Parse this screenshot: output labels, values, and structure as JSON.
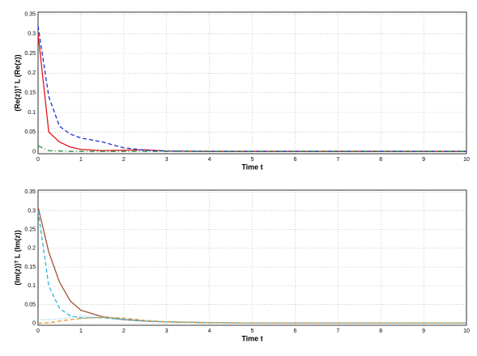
{
  "chart_data": [
    {
      "type": "line",
      "xlabel": "Time t",
      "ylabel": "(Re(z))ᵀ L (Re(z))",
      "x": [
        0,
        0.25,
        0.5,
        0.75,
        1,
        1.5,
        2,
        2.5,
        3,
        4,
        5,
        6,
        7,
        8,
        9,
        10
      ],
      "series": [
        {
          "color": "#e8141a",
          "dash": "solid",
          "values": [
            0.3,
            0.05,
            0.025,
            0.012,
            0.006,
            0.003,
            0.004,
            0.005,
            0.002,
            0.001,
            0.001,
            0.001,
            0.001,
            0.001,
            0.001,
            0.001
          ]
        },
        {
          "color": "#1a2fd6",
          "dash": "dashed",
          "values": [
            0.32,
            0.14,
            0.065,
            0.045,
            0.035,
            0.025,
            0.01,
            0.004,
            0.002,
            0.001,
            0.001,
            0.001,
            0.001,
            0.001,
            0.001,
            0.001
          ]
        },
        {
          "color": "#1d8a3a",
          "dash": "dashdot",
          "values": [
            0.015,
            0.003,
            0.002,
            0.001,
            0.001,
            0.001,
            0.001,
            0.001,
            0.001,
            0.001,
            0.001,
            0.001,
            0.001,
            0.001,
            0.001,
            0.001
          ]
        }
      ],
      "xlim": [
        0,
        10
      ],
      "xticks": [
        0,
        1,
        2,
        3,
        4,
        5,
        6,
        7,
        8,
        9,
        10
      ],
      "ylim": [
        -0.005,
        0.355
      ],
      "yticks": [
        0,
        0.05,
        0.1,
        0.15,
        0.2,
        0.25,
        0.3,
        0.35
      ],
      "grid": true
    },
    {
      "type": "line",
      "xlabel": "Time t",
      "ylabel": "(Im(z))ᵀ L (Im(z))",
      "x": [
        0,
        0.25,
        0.5,
        0.75,
        1,
        1.5,
        2,
        2.5,
        3,
        4,
        5,
        6,
        7,
        8,
        9,
        10
      ],
      "series": [
        {
          "color": "#a0522d",
          "dash": "solid",
          "values": [
            0.31,
            0.19,
            0.11,
            0.06,
            0.035,
            0.018,
            0.01,
            0.006,
            0.004,
            0.002,
            0.001,
            0.001,
            0.001,
            0.001,
            0.001,
            0.001
          ]
        },
        {
          "color": "#2bb5e0",
          "dash": "dashed",
          "values": [
            0.3,
            0.1,
            0.04,
            0.02,
            0.015,
            0.015,
            0.01,
            0.006,
            0.004,
            0.002,
            0.001,
            0.001,
            0.001,
            0.001,
            0.001,
            0.001
          ]
        },
        {
          "color": "#7fc8e8",
          "dash": "dotted",
          "values": [
            0.01,
            0.01,
            0.012,
            0.015,
            0.02,
            0.018,
            0.012,
            0.007,
            0.004,
            0.002,
            0.001,
            0.001,
            0.001,
            0.001,
            0.001,
            0.001
          ]
        },
        {
          "color": "#e09a3a",
          "dash": "dashed",
          "values": [
            0,
            0.002,
            0.006,
            0.01,
            0.013,
            0.016,
            0.014,
            0.008,
            0.004,
            0.002,
            0.001,
            0.001,
            0.001,
            0.001,
            0.001,
            0.001
          ]
        }
      ],
      "xlim": [
        0,
        10
      ],
      "xticks": [
        0,
        1,
        2,
        3,
        4,
        5,
        6,
        7,
        8,
        9,
        10
      ],
      "ylim": [
        -0.005,
        0.355
      ],
      "yticks": [
        0,
        0.05,
        0.1,
        0.15,
        0.2,
        0.25,
        0.3,
        0.35
      ],
      "grid": true
    }
  ]
}
